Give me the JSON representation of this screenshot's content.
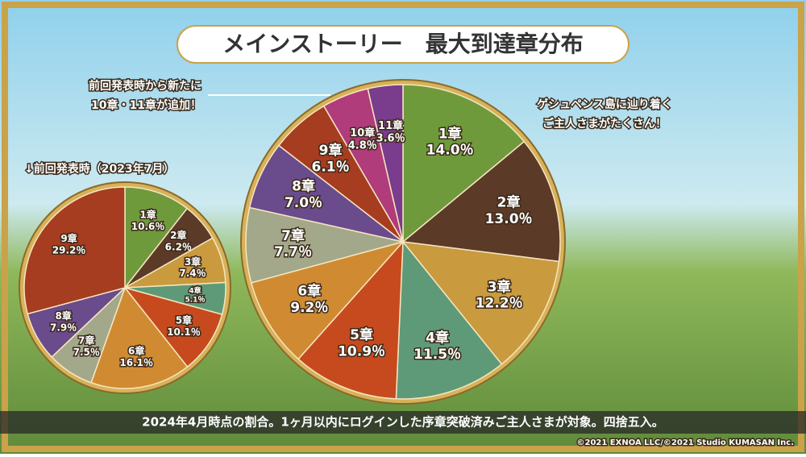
{
  "title": "メインストーリー　最大到達章分布",
  "notes": [
    [
      "前回発表時から新たに",
      "10章・11章が追加！"
    ],
    [
      "ゲシュペンス島に辿り着く",
      "ご主人さまがたくさん！"
    ]
  ],
  "footer": "2024年4月時点の割合。1ヶ月以内にログインした序章突破済みご主人さまが対象。四捨五入。",
  "copyright": "©2021 EXNOA LLC/©2021 Studio KUMASAN Inc.",
  "chart_data": [
    {
      "type": "pie",
      "categories": [
        "1章",
        "2章",
        "3章",
        "4章",
        "5章",
        "6章",
        "7章",
        "8章",
        "9章",
        "10章",
        "11章"
      ],
      "values": [
        14.0,
        13.0,
        12.2,
        11.5,
        10.9,
        9.2,
        7.7,
        7.0,
        6.1,
        4.8,
        3.6
      ],
      "value_labels": [
        "14.0％",
        "13.0％",
        "12.2％",
        "11.5％",
        "10.9％",
        "9.2％",
        "7.7％",
        "7.0％",
        "6.1％",
        "4.8％",
        "3.6％"
      ],
      "colors": [
        "#6f9a3c",
        "#5c3a28",
        "#c99a3e",
        "#5f9a78",
        "#c64a1e",
        "#d08b32",
        "#a3a88a",
        "#6a4b8c",
        "#a63c20",
        "#b03c7c",
        "#7a3c8c"
      ]
    },
    {
      "type": "pie",
      "title": "↓前回発表時（2023年7月）",
      "categories": [
        "1章",
        "2章",
        "3章",
        "4章",
        "5章",
        "6章",
        "7章",
        "8章",
        "9章"
      ],
      "values": [
        10.6,
        6.2,
        7.4,
        5.1,
        10.1,
        16.1,
        7.5,
        7.9,
        29.2
      ],
      "value_labels": [
        "10.6％",
        "6.2％",
        "7.4％",
        "5.1％",
        "10.1％",
        "16.1％",
        "7.5％",
        "7.9％",
        "29.2％"
      ],
      "colors": [
        "#6f9a3c",
        "#5c3a28",
        "#c99a3e",
        "#5f9a78",
        "#c64a1e",
        "#d08b32",
        "#a3a88a",
        "#6a4b8c",
        "#a63c20"
      ]
    }
  ]
}
